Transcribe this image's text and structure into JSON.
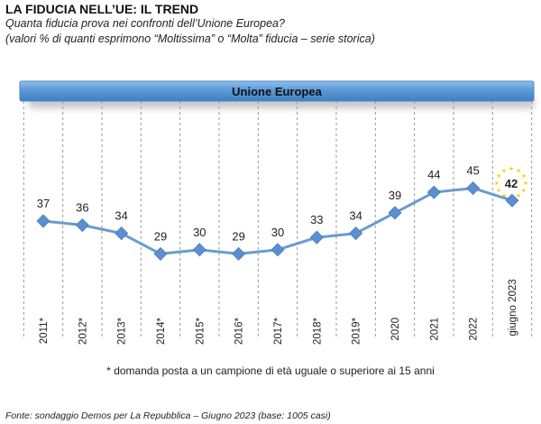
{
  "header": {
    "title": "LA FIDUCIA NELL’UE: IL TREND",
    "subtitle_line1": "Quanta fiducia prova nei confronti dell’Unione Europea?",
    "subtitle_line2": "(valori % di quanti esprimono “Moltissima” o “Molta” fiducia – serie storica)"
  },
  "chart_data": {
    "type": "line",
    "title": "Unione Europea",
    "categories": [
      "2011*",
      "2012*",
      "2013*",
      "2014*",
      "2015*",
      "2016*",
      "2017*",
      "2018*",
      "2019*",
      "2020",
      "2021",
      "2022",
      "giugno 2023"
    ],
    "series": [
      {
        "name": "Unione Europea",
        "values": [
          37,
          36,
          34,
          29,
          30,
          29,
          30,
          33,
          34,
          39,
          44,
          45,
          42
        ]
      }
    ],
    "highlight": "giugno 2023",
    "grid": "vertical dashed",
    "colors": {
      "line": "#6a9bd0",
      "marker": "#5b8fcf",
      "banner": "#5b9ad6",
      "star": "#f2d200"
    }
  },
  "footnote": "* domanda posta a un campione di età uguale o superiore ai 15 anni",
  "source": "Fonte: sondaggio Demos per La Repubblica – Giugno 2023 (base: 1005 casi)"
}
